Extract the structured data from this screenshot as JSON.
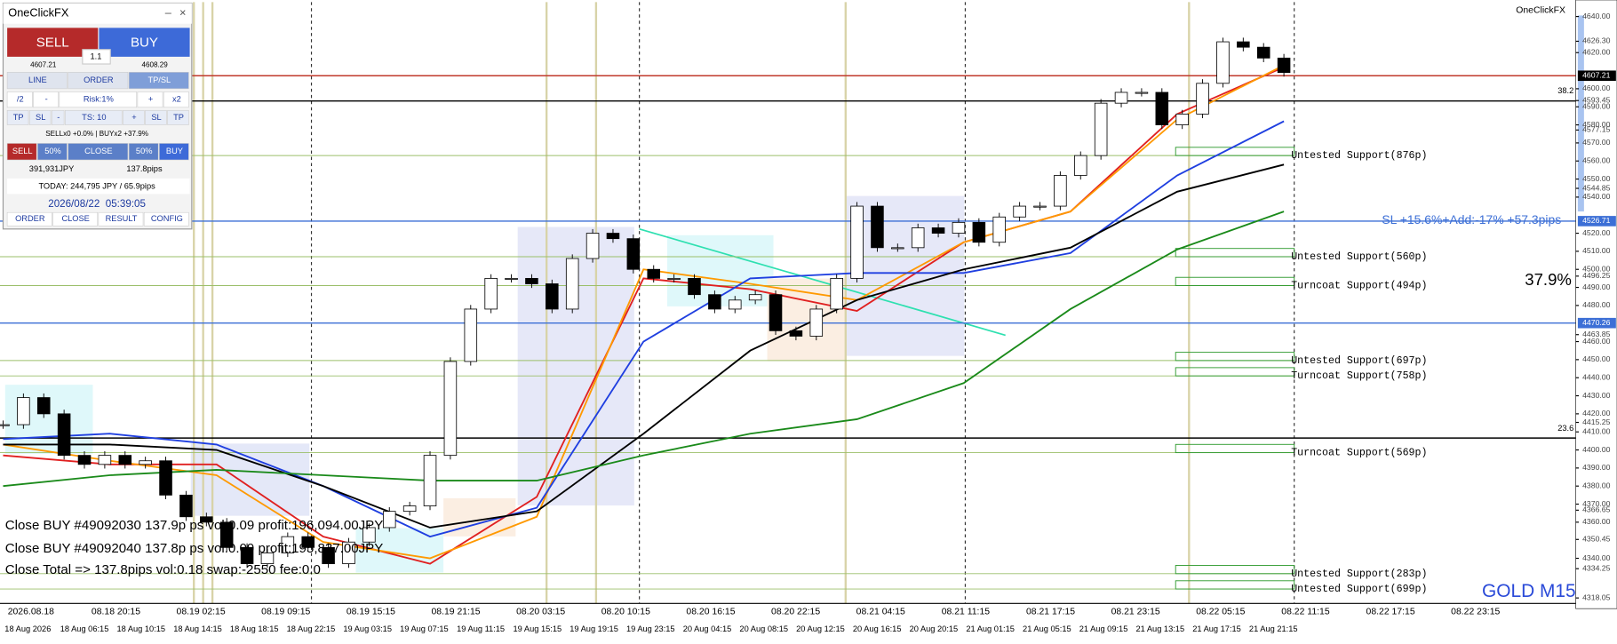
{
  "panel": {
    "title": "OneClickFX",
    "sell": "SELL",
    "buy": "BUY",
    "sell_price": "4607.21",
    "lot": "1.1",
    "buy_price": "4608.29",
    "tabs": [
      "LINE",
      "ORDER",
      "TP/SL"
    ],
    "risk_row": [
      "/2",
      "-",
      "Risk:1%",
      "+",
      "x2"
    ],
    "ts_row": [
      "TP",
      "SL",
      "-",
      "TS: 10",
      "+",
      "SL",
      "TP"
    ],
    "status": "SELLx0 +0.0% | BUYx2 +37.9%",
    "close_row": [
      "SELL",
      "50%",
      "CLOSE",
      "50%",
      "BUY"
    ],
    "pnl": [
      "391,931JPY",
      "137.8pips"
    ],
    "today": "TODAY: 244,795 JPY / 65.9pips",
    "datetime": "2026/08/22  05:39:05",
    "buttons": [
      "ORDER",
      "CLOSE",
      "RESULT",
      "CONFIG"
    ]
  },
  "chart": {
    "brand": "OneClickFX",
    "symbol": "GOLD M15",
    "ylim": [
      4315,
      4648
    ],
    "yticks": [
      {
        "value": 4640,
        "label": "4640.00"
      },
      {
        "value": 4626.3,
        "label": "4626.30"
      },
      {
        "value": 4620,
        "label": "4620.00"
      },
      {
        "value": 4600,
        "label": "4600.00"
      },
      {
        "value": 4593.45,
        "label": "4593.45"
      },
      {
        "value": 4590,
        "label": "4590.00"
      },
      {
        "value": 4580,
        "label": "4580.00"
      },
      {
        "value": 4577.15,
        "label": "4577.15"
      },
      {
        "value": 4570,
        "label": "4570.00"
      },
      {
        "value": 4560,
        "label": "4560.00"
      },
      {
        "value": 4550,
        "label": "4550.00"
      },
      {
        "value": 4544.85,
        "label": "4544.85"
      },
      {
        "value": 4540,
        "label": "4540.00"
      },
      {
        "value": 4520,
        "label": "4520.00"
      },
      {
        "value": 4510,
        "label": "4510.00"
      },
      {
        "value": 4500,
        "label": "4500.00"
      },
      {
        "value": 4496.25,
        "label": "4496.25"
      },
      {
        "value": 4490,
        "label": "4490.00"
      },
      {
        "value": 4480,
        "label": "4480.00"
      },
      {
        "value": 4463.85,
        "label": "4463.85"
      },
      {
        "value": 4460,
        "label": "4460.00"
      },
      {
        "value": 4450,
        "label": "4450.00"
      },
      {
        "value": 4440,
        "label": "4440.00"
      },
      {
        "value": 4430,
        "label": "4430.00"
      },
      {
        "value": 4420,
        "label": "4420.00"
      },
      {
        "value": 4415.25,
        "label": "4415.25"
      },
      {
        "value": 4410,
        "label": "4410.00"
      },
      {
        "value": 4400,
        "label": "4400.00"
      },
      {
        "value": 4390,
        "label": "4390.00"
      },
      {
        "value": 4380,
        "label": "4380.00"
      },
      {
        "value": 4370,
        "label": "4370.00"
      },
      {
        "value": 4366.65,
        "label": "4366.65"
      },
      {
        "value": 4360,
        "label": "4360.00"
      },
      {
        "value": 4350.45,
        "label": "4350.45"
      },
      {
        "value": 4340,
        "label": "4340.00"
      },
      {
        "value": 4334.25,
        "label": "4334.25"
      },
      {
        "value": 4318.05,
        "label": "4318.05"
      }
    ],
    "price_tags": [
      {
        "value": 4607.21,
        "label": "4607.21",
        "color": "#000000"
      },
      {
        "value": 4526.71,
        "label": "4526.71",
        "color": "#3c6fd6"
      },
      {
        "value": 4470.26,
        "label": "4470.26",
        "color": "#3c6fd6"
      }
    ],
    "hlines": [
      {
        "value": 4607.21,
        "color": "#c0392b"
      },
      {
        "value": 4593.2,
        "color": "#000000"
      },
      {
        "value": 4526.71,
        "color": "#3c6fd6"
      },
      {
        "value": 4470.26,
        "color": "#3c6fd6"
      },
      {
        "value": 4406.6,
        "color": "#000000"
      }
    ],
    "fib": [
      {
        "label": "38.2",
        "value": 4596.5
      },
      {
        "label": "23.6",
        "value": 4409.5
      }
    ],
    "levels": [
      {
        "label": "Untested Support(876p)",
        "value": 4563
      },
      {
        "label": "Untested Support(560p)",
        "value": 4507
      },
      {
        "label": "Turncoat Support(494p)",
        "value": 4491
      },
      {
        "label": "Untested Support(697p)",
        "value": 4449.5
      },
      {
        "label": "Turncoat Support(758p)",
        "value": 4441
      },
      {
        "label": "Turncoat Support(569p)",
        "value": 4398.5
      },
      {
        "label": "Untested Support(283p)",
        "value": 4331.5
      },
      {
        "label": "Untested Support(699p)",
        "value": 4323
      }
    ],
    "time_top": [
      "2026.08.18",
      "08.18 20:15",
      "08.19 02:15",
      "08.19 09:15",
      "08.19 15:15",
      "08.19 21:15",
      "08.20 03:15",
      "08.20 10:15",
      "08.20 16:15",
      "08.20 22:15",
      "08.21 04:15",
      "08.21 11:15",
      "08.21 17:15",
      "08.21 23:15",
      "08.22 05:15",
      "08.22 11:15",
      "08.22 17:15",
      "08.22 23:15"
    ],
    "time_bottom": [
      "18 Aug 2026",
      "18 Aug 06:15",
      "18 Aug 10:15",
      "18 Aug 14:15",
      "18 Aug 18:15",
      "18 Aug 22:15",
      "19 Aug 03:15",
      "19 Aug 07:15",
      "19 Aug 11:15",
      "19 Aug 15:15",
      "19 Aug 19:15",
      "19 Aug 23:15",
      "20 Aug 04:15",
      "20 Aug 08:15",
      "20 Aug 12:15",
      "20 Aug 16:15",
      "20 Aug 20:15",
      "21 Aug 01:15",
      "21 Aug 05:15",
      "21 Aug 09:15",
      "21 Aug 13:15",
      "21 Aug 17:15",
      "21 Aug 21:15"
    ],
    "messages": [
      "Close BUY #49092030 137.9p ps vol:0.09 profit:196,094.00JPY",
      "Close BUY #49092040 137.8p ps vol:0.09 profit:195,837.00JPY",
      "Close Total => 137.8pips vol:0.18 swap:-2550 fee:0.0"
    ],
    "sl_text": "SL +15.6%+Add:-17% +57.3pips",
    "percent": "37.9%",
    "closes": [
      4414,
      4429,
      4420,
      4397,
      4392,
      4397,
      4392,
      4394,
      4375,
      4363,
      4360,
      4346,
      4337,
      4343,
      4352,
      4346,
      4337,
      4349,
      4357,
      4366,
      4369,
      4397,
      4449,
      4478,
      4495,
      4495,
      4492,
      4478,
      4506,
      4520,
      4517,
      4500,
      4495,
      4495,
      4486,
      4478,
      4483,
      4486,
      4466,
      4463,
      4478,
      4495,
      4535,
      4512,
      4512,
      4523,
      4520,
      4526,
      4515,
      4529,
      4535,
      4535,
      4552,
      4563,
      4592,
      4598,
      4598,
      4580,
      4586,
      4603,
      4626,
      4623,
      4617,
      4609
    ],
    "ma": [
      {
        "color": "#e02020",
        "values": [
          4397,
          4392,
          4392,
          4352,
          4337,
          4374,
          4495,
          4489,
          4477,
          4515,
          4532,
          4586,
          4612
        ]
      },
      {
        "color": "#ff9900",
        "values": [
          4403,
          4394,
          4386,
          4349,
          4340,
          4363,
          4500,
          4492,
          4483,
          4515,
          4532,
          4583,
          4613
        ]
      },
      {
        "color": "#1f3fe0",
        "values": [
          4406,
          4409,
          4403,
          4380,
          4352,
          4368,
          4460,
          4495,
          4498,
          4498,
          4509,
          4552,
          4582
        ]
      },
      {
        "color": "#000000",
        "values": [
          4403,
          4403,
          4400,
          4380,
          4357,
          4366,
          4409,
          4455,
          4483,
          4500,
          4512,
          4543,
          4558
        ]
      },
      {
        "color": "#1a8a1a",
        "values": [
          4380,
          4386,
          4389,
          4386,
          4383,
          4383,
          4397,
          4409,
          4417,
          4437,
          4478,
          4511,
          4532
        ]
      }
    ]
  }
}
